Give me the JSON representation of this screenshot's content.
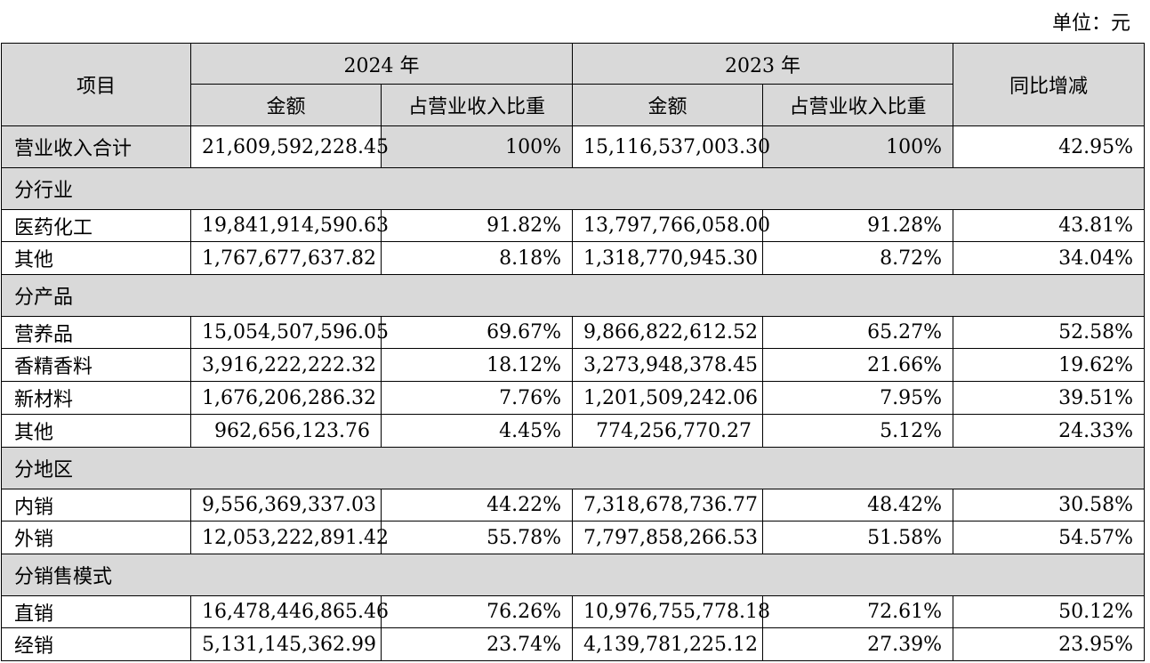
{
  "unit_label": "单位：元",
  "header": {
    "item": "项目",
    "year_2024": "2024 年",
    "year_2023": "2023 年",
    "yoy": "同比增减",
    "amount": "金额",
    "share": "占营业收入比重"
  },
  "total": {
    "label": "营业收入合计",
    "amount_2024": "21,609,592,228.45",
    "share_2024": "100%",
    "amount_2023": "15,116,537,003.30",
    "share_2023": "100%",
    "yoy": "42.95%"
  },
  "sections": [
    {
      "title": "分行业",
      "rows": [
        {
          "label": "医药化工",
          "amount_2024": "19,841,914,590.63",
          "share_2024": "91.82%",
          "amount_2023": "13,797,766,058.00",
          "share_2023": "91.28%",
          "yoy": "43.81%"
        },
        {
          "label": "其他",
          "amount_2024": "1,767,677,637.82",
          "share_2024": "8.18%",
          "amount_2023": "1,318,770,945.30",
          "share_2023": "8.72%",
          "yoy": "34.04%"
        }
      ]
    },
    {
      "title": "分产品",
      "rows": [
        {
          "label": "营养品",
          "amount_2024": "15,054,507,596.05",
          "share_2024": "69.67%",
          "amount_2023": "9,866,822,612.52",
          "share_2023": "65.27%",
          "yoy": "52.58%"
        },
        {
          "label": "香精香料",
          "amount_2024": "3,916,222,222.32",
          "share_2024": "18.12%",
          "amount_2023": "3,273,948,378.45",
          "share_2023": "21.66%",
          "yoy": "19.62%"
        },
        {
          "label": "新材料",
          "amount_2024": "1,676,206,286.32",
          "share_2024": "7.76%",
          "amount_2023": "1,201,509,242.06",
          "share_2023": "7.95%",
          "yoy": "39.51%"
        },
        {
          "label": "其他",
          "amount_2024": "962,656,123.76",
          "share_2024": "4.45%",
          "amount_2023": "774,256,770.27",
          "share_2023": "5.12%",
          "yoy": "24.33%"
        }
      ]
    },
    {
      "title": "分地区",
      "rows": [
        {
          "label": "内销",
          "amount_2024": "9,556,369,337.03",
          "share_2024": "44.22%",
          "amount_2023": "7,318,678,736.77",
          "share_2023": "48.42%",
          "yoy": "30.58%"
        },
        {
          "label": "外销",
          "amount_2024": "12,053,222,891.42",
          "share_2024": "55.78%",
          "amount_2023": "7,797,858,266.53",
          "share_2023": "51.58%",
          "yoy": "54.57%"
        }
      ]
    },
    {
      "title": "分销售模式",
      "rows": [
        {
          "label": "直销",
          "amount_2024": "16,478,446,865.46",
          "share_2024": "76.26%",
          "amount_2023": "10,976,755,778.18",
          "share_2023": "72.61%",
          "yoy": "50.12%"
        },
        {
          "label": "经销",
          "amount_2024": "5,131,145,362.99",
          "share_2024": "23.74%",
          "amount_2023": "4,139,781,225.12",
          "share_2023": "27.39%",
          "yoy": "23.95%"
        }
      ]
    }
  ]
}
